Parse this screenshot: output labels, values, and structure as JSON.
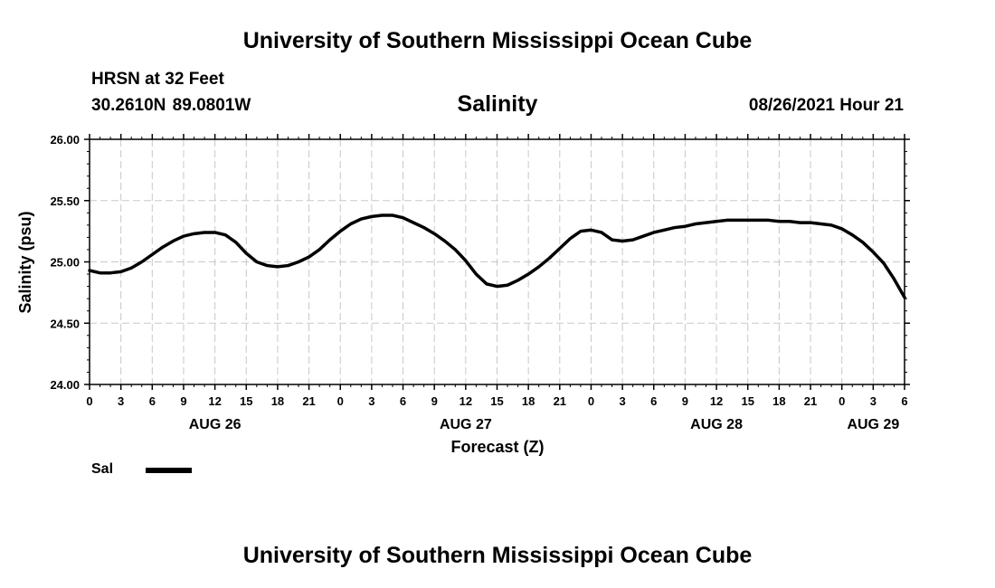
{
  "header": {
    "title": "University of Southern Mississippi Ocean Cube",
    "station": "HRSN at 32 Feet",
    "coordinates": "30.2610N  89.0801W",
    "datetime": "08/26/2021 Hour 21"
  },
  "footer": {
    "title": "University of Southern Mississippi Ocean Cube"
  },
  "chart_data": {
    "type": "line",
    "title": "Salinity",
    "xlabel": "Forecast (Z)",
    "ylabel": "Salinity (psu)",
    "ylim": [
      24.0,
      26.0
    ],
    "xlim_hours": [
      0,
      78
    ],
    "grid": true,
    "y_ticks": [
      "24.00",
      "24.50",
      "25.00",
      "25.50",
      "26.00"
    ],
    "x_ticks": [
      "0",
      "3",
      "6",
      "9",
      "12",
      "15",
      "18",
      "21",
      "0",
      "3",
      "6",
      "9",
      "12",
      "15",
      "18",
      "21",
      "0",
      "3",
      "6",
      "9",
      "12",
      "15",
      "18",
      "21",
      "0",
      "3",
      "6"
    ],
    "date_labels": [
      {
        "label": "AUG 26",
        "hour": 12
      },
      {
        "label": "AUG 27",
        "hour": 36
      },
      {
        "label": "AUG 28",
        "hour": 60
      },
      {
        "label": "AUG 29",
        "hour": 75
      }
    ],
    "series": [
      {
        "name": "Sal",
        "color": "#000000",
        "x_hours": [
          0,
          1,
          2,
          3,
          4,
          5,
          6,
          7,
          8,
          9,
          10,
          11,
          12,
          13,
          14,
          15,
          16,
          17,
          18,
          19,
          20,
          21,
          22,
          23,
          24,
          25,
          26,
          27,
          28,
          29,
          30,
          31,
          32,
          33,
          34,
          35,
          36,
          37,
          38,
          39,
          40,
          41,
          42,
          43,
          44,
          45,
          46,
          47,
          48,
          49,
          50,
          51,
          52,
          53,
          54,
          55,
          56,
          57,
          58,
          59,
          60,
          61,
          62,
          63,
          64,
          65,
          66,
          67,
          68,
          69,
          70,
          71,
          72,
          73,
          74,
          75,
          76,
          77,
          78
        ],
        "values": [
          24.93,
          24.91,
          24.91,
          24.92,
          24.95,
          25.0,
          25.06,
          25.12,
          25.17,
          25.21,
          25.23,
          25.24,
          25.24,
          25.22,
          25.16,
          25.07,
          25.0,
          24.97,
          24.96,
          24.97,
          25.0,
          25.04,
          25.1,
          25.18,
          25.25,
          25.31,
          25.35,
          25.37,
          25.38,
          25.38,
          25.36,
          25.32,
          25.28,
          25.23,
          25.17,
          25.1,
          25.01,
          24.9,
          24.82,
          24.8,
          24.81,
          24.85,
          24.9,
          24.96,
          25.03,
          25.11,
          25.19,
          25.25,
          25.26,
          25.24,
          25.18,
          25.17,
          25.18,
          25.21,
          25.24,
          25.26,
          25.28,
          25.29,
          25.31,
          25.32,
          25.33,
          25.34,
          25.34,
          25.34,
          25.34,
          25.34,
          25.33,
          25.33,
          25.32,
          25.32,
          25.31,
          25.3,
          25.27,
          25.22,
          25.16,
          25.08,
          24.99,
          24.86,
          24.71
        ]
      }
    ]
  }
}
